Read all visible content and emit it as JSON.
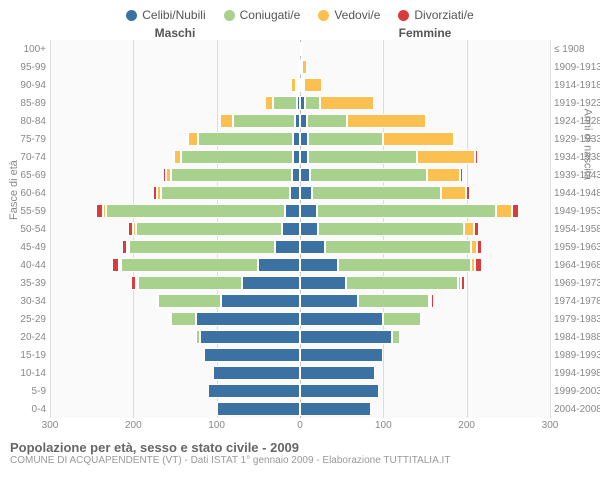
{
  "legend": [
    {
      "label": "Celibi/Nubili",
      "color": "#3b72a3"
    },
    {
      "label": "Coniugati/e",
      "color": "#a8d18d"
    },
    {
      "label": "Vedovi/e",
      "color": "#fbc04f"
    },
    {
      "label": "Divorziati/e",
      "color": "#d93c3c"
    }
  ],
  "headers": {
    "male": "Maschi",
    "female": "Femmine"
  },
  "xaxis": {
    "max": 300,
    "ticks": [
      300,
      200,
      100,
      0,
      100,
      200,
      300
    ],
    "positions_pct": [
      0,
      16.67,
      33.33,
      50,
      66.67,
      83.33,
      100
    ]
  },
  "yaxis_left_label": "Fasce di età",
  "yaxis_right_label": "Anni di nascita",
  "grid_positions_pct": [
    0,
    16.67,
    33.33,
    50,
    66.67,
    83.33,
    100
  ],
  "colors": {
    "single": "#3b72a3",
    "married": "#a8d18d",
    "widowed": "#fbc04f",
    "divorced": "#d93c3c",
    "grid": "#dddddd",
    "bg": "#fafafa"
  },
  "rows": [
    {
      "age": "100+",
      "year": "≤ 1908",
      "m": [
        0,
        0,
        0,
        0
      ],
      "f": [
        0,
        0,
        1,
        0
      ]
    },
    {
      "age": "95-99",
      "year": "1909-1913",
      "m": [
        0,
        0,
        2,
        0
      ],
      "f": [
        1,
        0,
        6,
        0
      ]
    },
    {
      "age": "90-94",
      "year": "1914-1918",
      "m": [
        2,
        3,
        5,
        0
      ],
      "f": [
        2,
        2,
        22,
        0
      ]
    },
    {
      "age": "85-89",
      "year": "1919-1923",
      "m": [
        4,
        28,
        10,
        0
      ],
      "f": [
        6,
        18,
        65,
        0
      ]
    },
    {
      "age": "80-84",
      "year": "1924-1928",
      "m": [
        6,
        75,
        15,
        0
      ],
      "f": [
        8,
        48,
        95,
        2
      ]
    },
    {
      "age": "75-79",
      "year": "1929-1933",
      "m": [
        8,
        115,
        12,
        2
      ],
      "f": [
        10,
        90,
        85,
        2
      ]
    },
    {
      "age": "70-74",
      "year": "1934-1938",
      "m": [
        8,
        135,
        8,
        2
      ],
      "f": [
        10,
        130,
        70,
        4
      ]
    },
    {
      "age": "65-69",
      "year": "1939-1943",
      "m": [
        10,
        145,
        6,
        3
      ],
      "f": [
        12,
        140,
        40,
        4
      ]
    },
    {
      "age": "60-64",
      "year": "1944-1948",
      "m": [
        12,
        155,
        5,
        4
      ],
      "f": [
        14,
        155,
        30,
        5
      ]
    },
    {
      "age": "55-59",
      "year": "1949-1953",
      "m": [
        18,
        215,
        4,
        8
      ],
      "f": [
        20,
        215,
        20,
        8
      ]
    },
    {
      "age": "50-54",
      "year": "1954-1958",
      "m": [
        22,
        175,
        3,
        6
      ],
      "f": [
        22,
        175,
        12,
        6
      ]
    },
    {
      "age": "45-49",
      "year": "1959-1963",
      "m": [
        30,
        175,
        2,
        6
      ],
      "f": [
        30,
        175,
        8,
        6
      ]
    },
    {
      "age": "40-44",
      "year": "1964-1968",
      "m": [
        50,
        165,
        2,
        8
      ],
      "f": [
        45,
        160,
        5,
        8
      ]
    },
    {
      "age": "35-39",
      "year": "1969-1973",
      "m": [
        70,
        125,
        1,
        5
      ],
      "f": [
        55,
        135,
        3,
        5
      ]
    },
    {
      "age": "30-34",
      "year": "1974-1978",
      "m": [
        95,
        75,
        0,
        3
      ],
      "f": [
        70,
        85,
        1,
        3
      ]
    },
    {
      "age": "25-29",
      "year": "1979-1983",
      "m": [
        125,
        30,
        0,
        1
      ],
      "f": [
        100,
        45,
        0,
        1
      ]
    },
    {
      "age": "20-24",
      "year": "1984-1988",
      "m": [
        120,
        5,
        0,
        0
      ],
      "f": [
        110,
        10,
        0,
        0
      ]
    },
    {
      "age": "15-19",
      "year": "1989-1993",
      "m": [
        115,
        0,
        0,
        0
      ],
      "f": [
        100,
        0,
        0,
        0
      ]
    },
    {
      "age": "10-14",
      "year": "1994-1998",
      "m": [
        105,
        0,
        0,
        0
      ],
      "f": [
        90,
        0,
        0,
        0
      ]
    },
    {
      "age": "5-9",
      "year": "1999-2003",
      "m": [
        110,
        0,
        0,
        0
      ],
      "f": [
        95,
        0,
        0,
        0
      ]
    },
    {
      "age": "0-4",
      "year": "2004-2008",
      "m": [
        100,
        0,
        0,
        0
      ],
      "f": [
        85,
        0,
        0,
        0
      ]
    }
  ],
  "footer": {
    "title": "Popolazione per età, sesso e stato civile - 2009",
    "subtitle": "COMUNE DI ACQUAPENDENTE (VT) - Dati ISTAT 1° gennaio 2009 - Elaborazione TUTTITALIA.IT"
  }
}
